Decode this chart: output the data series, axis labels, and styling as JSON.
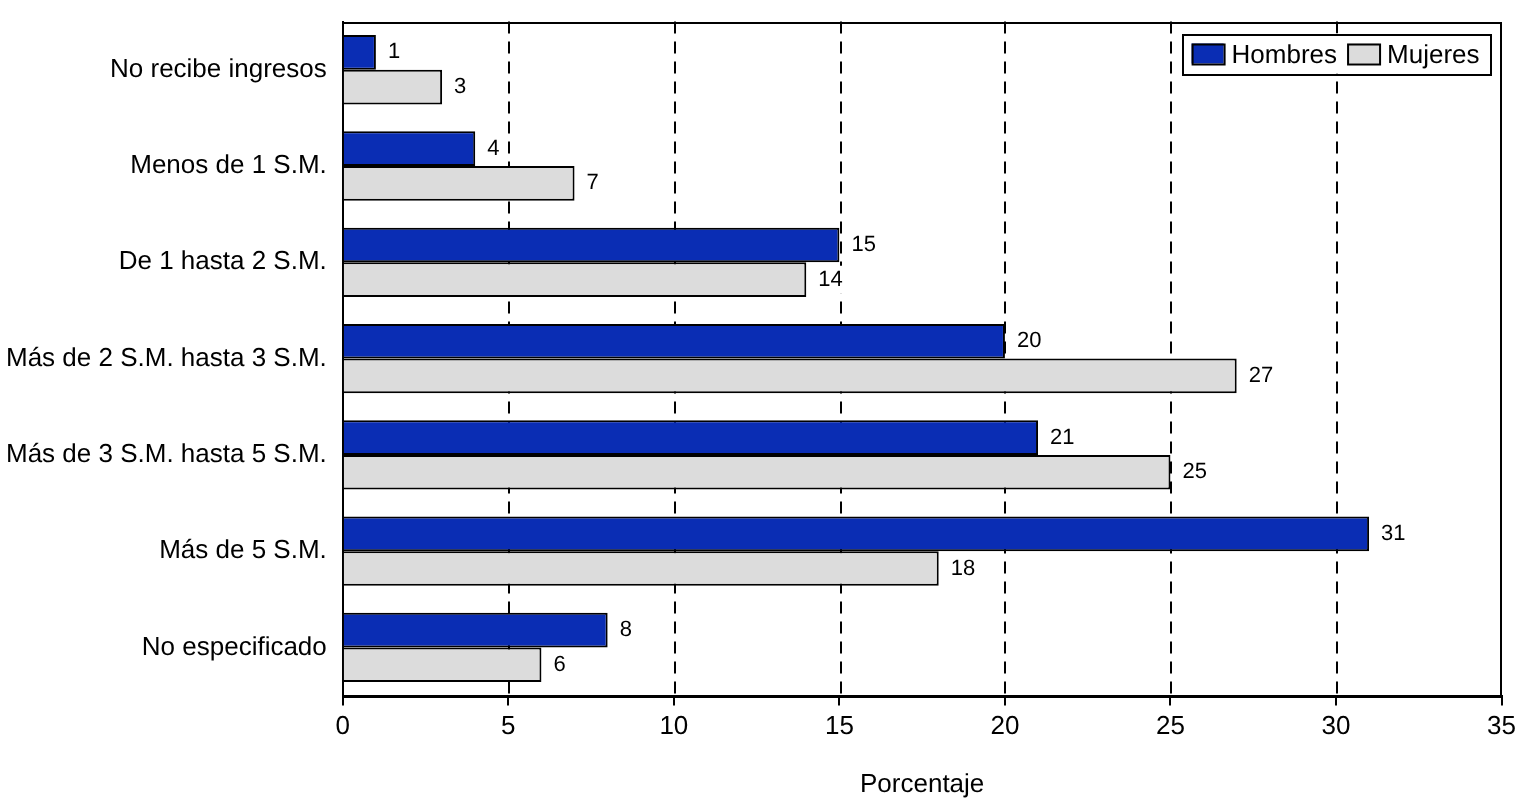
{
  "chart_data": {
    "type": "bar",
    "orientation": "horizontal",
    "xlabel": "Porcentaje",
    "categories": [
      "No recibe ingresos",
      "Menos de 1 S.M.",
      "De 1 hasta 2 S.M.",
      "Más de 2 S.M. hasta 3 S.M.",
      "Más de 3 S.M. hasta 5 S.M.",
      "Más de 5 S.M.",
      "No especificado"
    ],
    "series": [
      {
        "name": "Hombres",
        "color": "#0a2db4",
        "values": [
          1,
          4,
          15,
          20,
          21,
          31,
          8
        ]
      },
      {
        "name": "Mujeres",
        "color": "#dcdcdc",
        "values": [
          3,
          7,
          14,
          27,
          25,
          18,
          6
        ]
      }
    ],
    "xlim": [
      0,
      35
    ],
    "xticks": [
      0,
      5,
      10,
      15,
      20,
      25,
      30,
      35
    ],
    "grid": "x",
    "legend": "top right",
    "data_labels": true
  }
}
